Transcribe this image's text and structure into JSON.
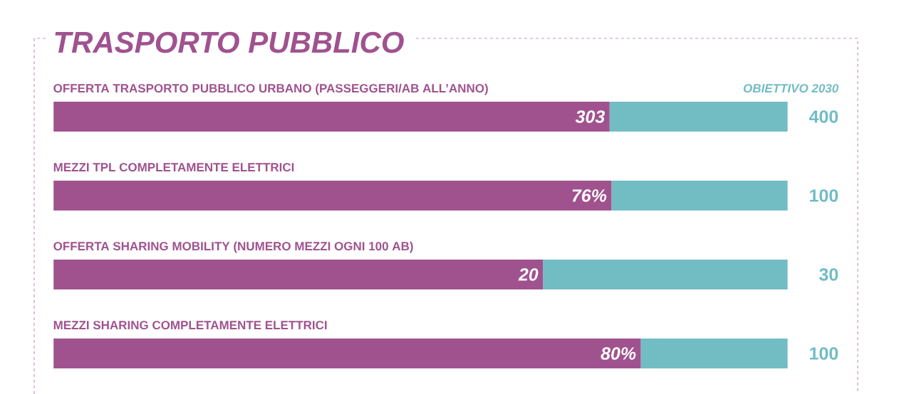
{
  "chart_data": [
    {
      "type": "bar",
      "orientation": "horizontal",
      "stacked": true,
      "title": "TRASPORTO PUBBLICO",
      "categories": [
        "**OFFERTA TRASPORTO PUBBLICO URBANO** (PASSEGGERI/AB ALL’ANNO)"
      ],
      "totals": [
        "400"
      ],
      "series": [
        {
          "color": "#a0528f",
          "values": [
            303
          ],
          "value_labels": [
            "303"
          ]
        },
        {
          "name": "OBIETTIVO 2030",
          "color": "#72bcc4",
          "values": [
            97
          ]
        }
      ]
    },
    {
      "type": "bar",
      "orientation": "horizontal",
      "stacked": true,
      "categories": [
        "MEZZI TPL COMPLETAMENTE ELETTRICI"
      ],
      "totals": [
        "100"
      ],
      "series": [
        {
          "color": "#a0528f",
          "values": [
            76
          ],
          "value_labels": [
            "76%"
          ]
        },
        {
          "color": "#72bcc4",
          "values": [
            24
          ]
        }
      ]
    },
    {
      "type": "bar",
      "orientation": "horizontal",
      "stacked": true,
      "categories": [
        "**OFFERTA SHARING MOBILITY** (NUMERO MEZZI OGNI 100 AB)"
      ],
      "totals": [
        "30"
      ],
      "series": [
        {
          "color": "#a0528f",
          "values": [
            20
          ],
          "value_labels": [
            "20"
          ]
        },
        {
          "color": "#72bcc4",
          "values": [
            10
          ]
        }
      ]
    },
    {
      "type": "bar",
      "orientation": "horizontal",
      "stacked": true,
      "categories": [
        "MEZZI SHARING COMPLETAMENTE ELETTRICI"
      ],
      "totals": [
        "100"
      ],
      "series": [
        {
          "color": "#a0528f",
          "values": [
            80
          ],
          "value_labels": [
            "80%"
          ]
        },
        {
          "color": "#72bcc4",
          "values": [
            20
          ]
        }
      ]
    }
  ]
}
